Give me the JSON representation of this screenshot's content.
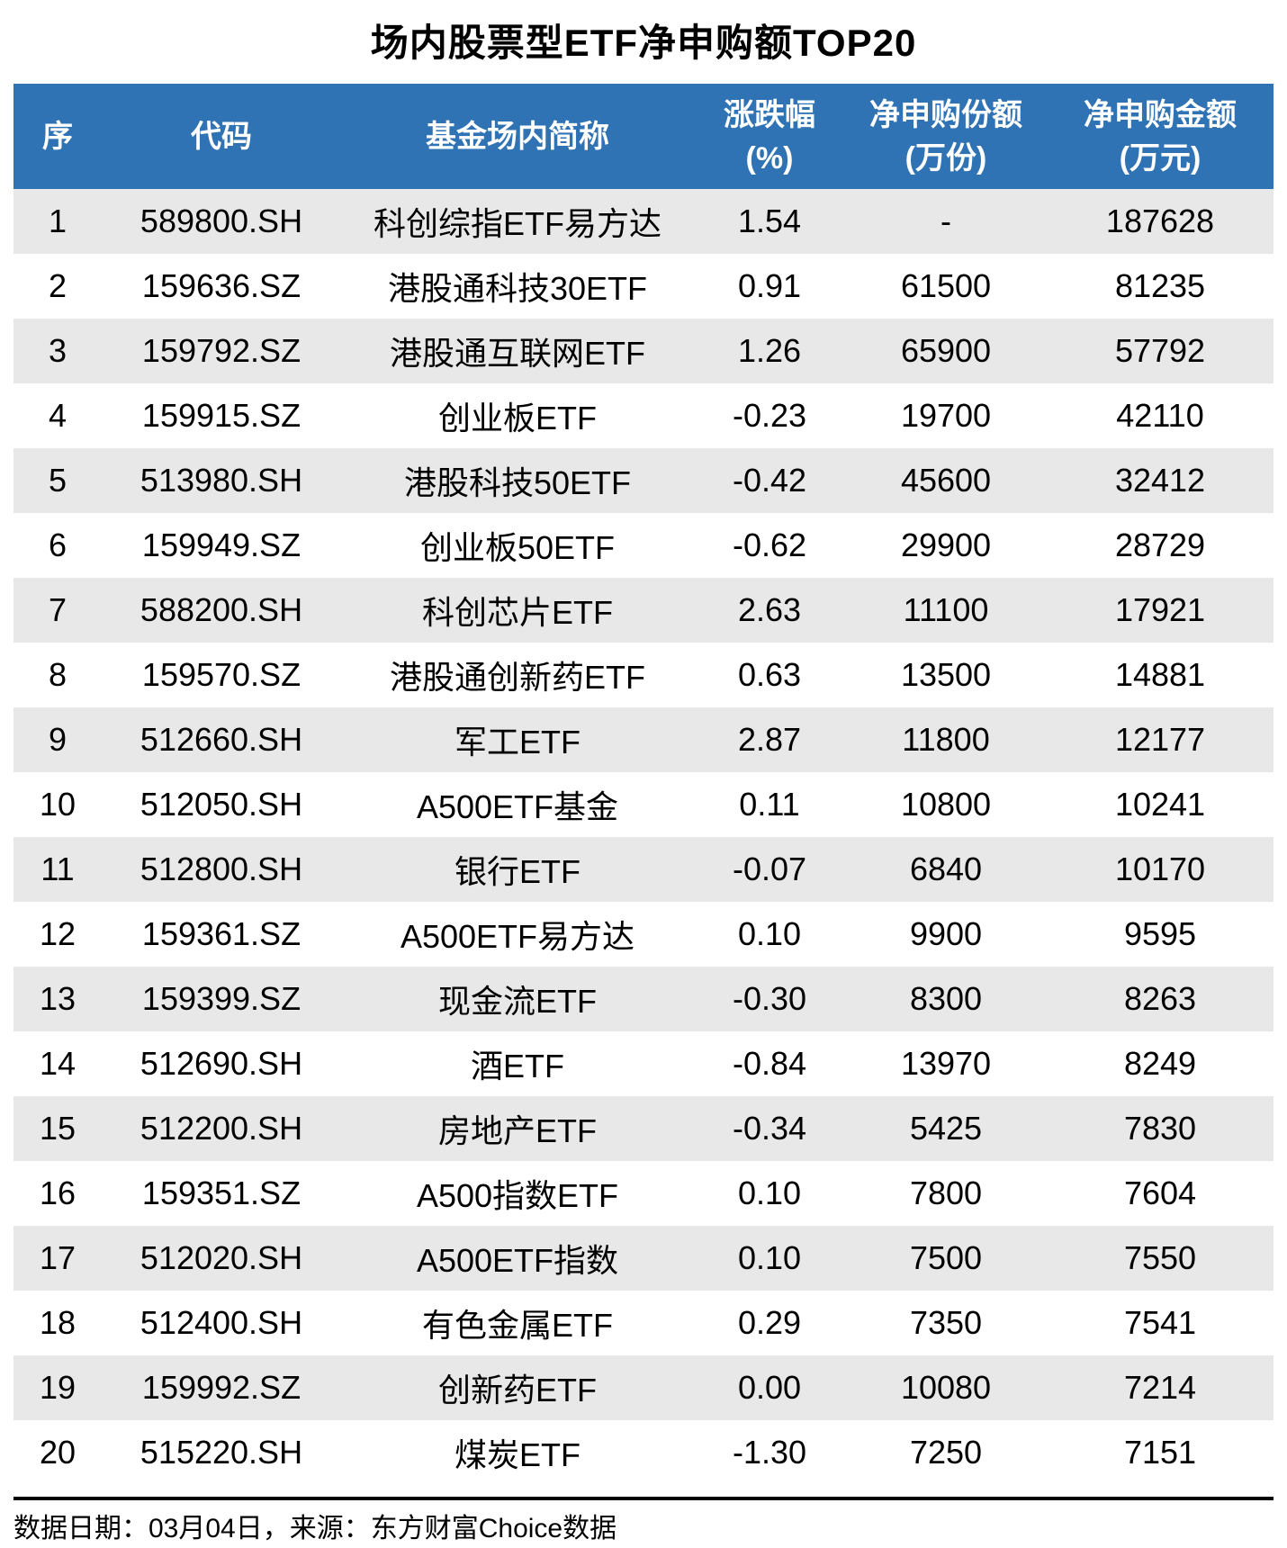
{
  "title": "场内股票型ETF净申购额TOP20",
  "colors": {
    "header_bg": "#2F73B4",
    "header_text": "#FFFFFF",
    "row_alt_bg": "#E8E8E8",
    "row_bg": "#FFFFFF",
    "text": "#000000",
    "footer_rule": "#000000"
  },
  "table": {
    "columns": [
      {
        "key": "rank",
        "line1": "序",
        "line2": ""
      },
      {
        "key": "code",
        "line1": "代码",
        "line2": ""
      },
      {
        "key": "name",
        "line1": "基金场内简称",
        "line2": ""
      },
      {
        "key": "change",
        "line1": "涨跌幅",
        "line2": "(%)"
      },
      {
        "key": "shares",
        "line1": "净申购份额",
        "line2": "(万份)"
      },
      {
        "key": "amount",
        "line1": "净申购金额",
        "line2": "(万元)"
      }
    ]
  },
  "footer": {
    "note": "数据日期：03月04日，来源：东方财富Choice数据"
  },
  "chart_data": {
    "type": "table",
    "title": "场内股票型ETF净申购额TOP20",
    "columns": [
      "序",
      "代码",
      "基金场内简称",
      "涨跌幅(%)",
      "净申购份额(万份)",
      "净申购金额(万元)"
    ],
    "rows": [
      {
        "rank": "1",
        "code": "589800.SH",
        "name": "科创综指ETF易方达",
        "change": "1.54",
        "shares": "-",
        "amount": "187628"
      },
      {
        "rank": "2",
        "code": "159636.SZ",
        "name": "港股通科技30ETF",
        "change": "0.91",
        "shares": "61500",
        "amount": "81235"
      },
      {
        "rank": "3",
        "code": "159792.SZ",
        "name": "港股通互联网ETF",
        "change": "1.26",
        "shares": "65900",
        "amount": "57792"
      },
      {
        "rank": "4",
        "code": "159915.SZ",
        "name": "创业板ETF",
        "change": "-0.23",
        "shares": "19700",
        "amount": "42110"
      },
      {
        "rank": "5",
        "code": "513980.SH",
        "name": "港股科技50ETF",
        "change": "-0.42",
        "shares": "45600",
        "amount": "32412"
      },
      {
        "rank": "6",
        "code": "159949.SZ",
        "name": "创业板50ETF",
        "change": "-0.62",
        "shares": "29900",
        "amount": "28729"
      },
      {
        "rank": "7",
        "code": "588200.SH",
        "name": "科创芯片ETF",
        "change": "2.63",
        "shares": "11100",
        "amount": "17921"
      },
      {
        "rank": "8",
        "code": "159570.SZ",
        "name": "港股通创新药ETF",
        "change": "0.63",
        "shares": "13500",
        "amount": "14881"
      },
      {
        "rank": "9",
        "code": "512660.SH",
        "name": "军工ETF",
        "change": "2.87",
        "shares": "11800",
        "amount": "12177"
      },
      {
        "rank": "10",
        "code": "512050.SH",
        "name": "A500ETF基金",
        "change": "0.11",
        "shares": "10800",
        "amount": "10241"
      },
      {
        "rank": "11",
        "code": "512800.SH",
        "name": "银行ETF",
        "change": "-0.07",
        "shares": "6840",
        "amount": "10170"
      },
      {
        "rank": "12",
        "code": "159361.SZ",
        "name": "A500ETF易方达",
        "change": "0.10",
        "shares": "9900",
        "amount": "9595"
      },
      {
        "rank": "13",
        "code": "159399.SZ",
        "name": "现金流ETF",
        "change": "-0.30",
        "shares": "8300",
        "amount": "8263"
      },
      {
        "rank": "14",
        "code": "512690.SH",
        "name": "酒ETF",
        "change": "-0.84",
        "shares": "13970",
        "amount": "8249"
      },
      {
        "rank": "15",
        "code": "512200.SH",
        "name": "房地产ETF",
        "change": "-0.34",
        "shares": "5425",
        "amount": "7830"
      },
      {
        "rank": "16",
        "code": "159351.SZ",
        "name": "A500指数ETF",
        "change": "0.10",
        "shares": "7800",
        "amount": "7604"
      },
      {
        "rank": "17",
        "code": "512020.SH",
        "name": "A500ETF指数",
        "change": "0.10",
        "shares": "7500",
        "amount": "7550"
      },
      {
        "rank": "18",
        "code": "512400.SH",
        "name": "有色金属ETF",
        "change": "0.29",
        "shares": "7350",
        "amount": "7541"
      },
      {
        "rank": "19",
        "code": "159992.SZ",
        "name": "创新药ETF",
        "change": "0.00",
        "shares": "10080",
        "amount": "7214"
      },
      {
        "rank": "20",
        "code": "515220.SH",
        "name": "煤炭ETF",
        "change": "-1.30",
        "shares": "7250",
        "amount": "7151"
      }
    ],
    "footnote": "数据日期：03月04日，来源：东方财富Choice数据",
    "layout": {
      "grid": "off",
      "zebra_stripes": true,
      "header_style": "blue-band"
    }
  }
}
